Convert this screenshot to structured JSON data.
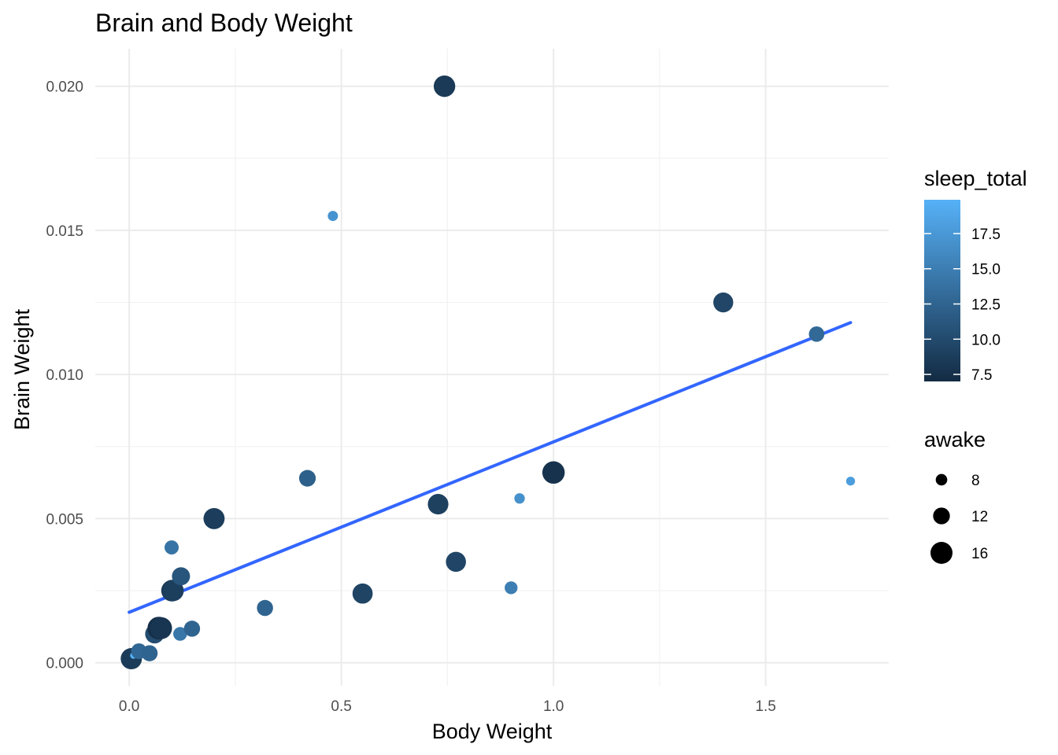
{
  "chart_data": {
    "type": "scatter",
    "title": "Brain and Body Weight",
    "xlabel": "Body Weight",
    "ylabel": "Brain Weight",
    "xlim": [
      -0.08,
      1.79
    ],
    "ylim": [
      -0.0008,
      0.0213
    ],
    "x_ticks": [
      0.0,
      0.5,
      1.0,
      1.5
    ],
    "x_tick_labels": [
      "0.0",
      "0.5",
      "1.0",
      "1.5"
    ],
    "y_ticks": [
      0.0,
      0.005,
      0.01,
      0.015,
      0.02
    ],
    "y_tick_labels": [
      "0.000",
      "0.005",
      "0.010",
      "0.015",
      "0.020"
    ],
    "grid": true,
    "legend_position": "right",
    "color_legend": {
      "title": "sleep_total",
      "variable": "sleep_total",
      "range": [
        7.0,
        19.9
      ],
      "low_color": "#132B43",
      "high_color": "#56B1F7",
      "breaks": [
        7.5,
        10.0,
        12.5,
        15.0,
        17.5
      ],
      "labels": [
        "7.5",
        "10.0",
        "12.5",
        "15.0",
        "17.5"
      ]
    },
    "size_legend": {
      "title": "awake",
      "variable": "awake",
      "breaks": [
        8,
        12,
        16
      ],
      "labels": [
        "8",
        "12",
        "16"
      ]
    },
    "points": [
      {
        "x": 0.005,
        "y": 0.00014,
        "sleep_total": 9.1,
        "awake": 15.0
      },
      {
        "x": 0.005,
        "y": 0.00014,
        "sleep_total": 8.6,
        "awake": 15.4
      },
      {
        "x": 0.01,
        "y": 0.00025,
        "sleep_total": 19.7,
        "awake": 4.3
      },
      {
        "x": 0.023,
        "y": 0.0004,
        "sleep_total": 12.8,
        "awake": 11.2
      },
      {
        "x": 0.048,
        "y": 0.00033,
        "sleep_total": 12.5,
        "awake": 11.5
      },
      {
        "x": 0.06,
        "y": 0.001,
        "sleep_total": 10.3,
        "awake": 13.7
      },
      {
        "x": 0.07,
        "y": 0.0012,
        "sleep_total": 7.4,
        "awake": 16.6
      },
      {
        "x": 0.075,
        "y": 0.0012,
        "sleep_total": 8.0,
        "awake": 16.0
      },
      {
        "x": 0.1,
        "y": 0.004,
        "sleep_total": 14.0,
        "awake": 10.0
      },
      {
        "x": 0.101,
        "y": 0.0025,
        "sleep_total": 8.3,
        "awake": 15.7
      },
      {
        "x": 0.104,
        "y": 0.0025,
        "sleep_total": 8.9,
        "awake": 15.1
      },
      {
        "x": 0.12,
        "y": 0.001,
        "sleep_total": 14.3,
        "awake": 9.7
      },
      {
        "x": 0.122,
        "y": 0.003,
        "sleep_total": 11.0,
        "awake": 13.0
      },
      {
        "x": 0.148,
        "y": 0.00118,
        "sleep_total": 12.5,
        "awake": 11.5
      },
      {
        "x": 0.2,
        "y": 0.005,
        "sleep_total": 8.7,
        "awake": 15.3
      },
      {
        "x": 0.32,
        "y": 0.0019,
        "sleep_total": 12.5,
        "awake": 11.5
      },
      {
        "x": 0.42,
        "y": 0.0064,
        "sleep_total": 12.1,
        "awake": 11.9
      },
      {
        "x": 0.48,
        "y": 0.0155,
        "sleep_total": 17.0,
        "awake": 7.0
      },
      {
        "x": 0.55,
        "y": 0.0024,
        "sleep_total": 9.4,
        "awake": 14.6
      },
      {
        "x": 0.728,
        "y": 0.0055,
        "sleep_total": 9.1,
        "awake": 14.9
      },
      {
        "x": 0.743,
        "y": 0.02,
        "sleep_total": 8.4,
        "awake": 15.6
      },
      {
        "x": 0.77,
        "y": 0.0035,
        "sleep_total": 9.5,
        "awake": 14.5
      },
      {
        "x": 0.9,
        "y": 0.0026,
        "sleep_total": 15.0,
        "awake": 9.0
      },
      {
        "x": 0.92,
        "y": 0.0057,
        "sleep_total": 16.8,
        "awake": 7.2
      },
      {
        "x": 1.0,
        "y": 0.0066,
        "sleep_total": 7.7,
        "awake": 16.3
      },
      {
        "x": 1.4,
        "y": 0.0125,
        "sleep_total": 9.6,
        "awake": 14.4
      },
      {
        "x": 1.62,
        "y": 0.0114,
        "sleep_total": 13.0,
        "awake": 11.0
      },
      {
        "x": 1.7,
        "y": 0.0063,
        "sleep_total": 18.0,
        "awake": 6.0
      }
    ],
    "smooth_line": {
      "method": "lm",
      "color": "#3366FF",
      "x": [
        0.0,
        1.7
      ],
      "y": [
        0.00175,
        0.0118
      ]
    }
  }
}
